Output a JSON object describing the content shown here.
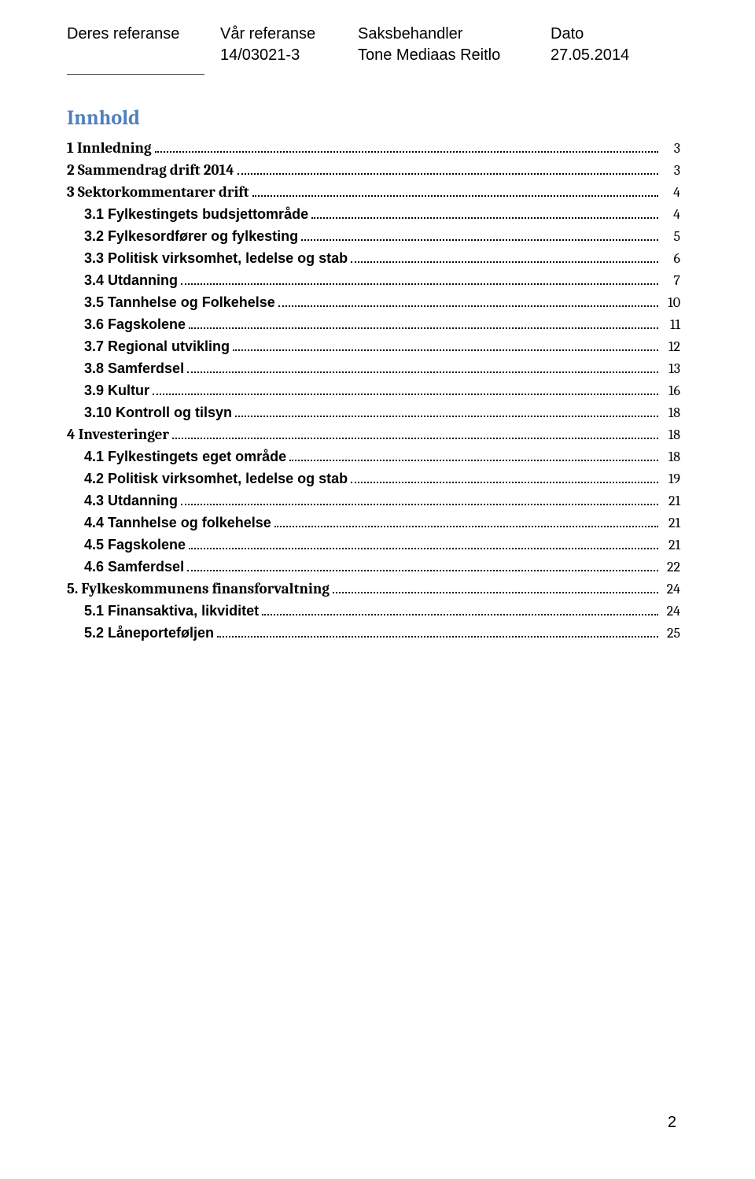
{
  "header": {
    "labels": {
      "col1": "Deres referanse",
      "col2": "Vår referanse",
      "col3": "Saksbehandler",
      "col4": "Dato"
    },
    "values": {
      "col1": "",
      "col2": "14/03021-3",
      "col3": "Tone Mediaas Reitlo",
      "col4": "27.05.2014"
    }
  },
  "title": "Innhold",
  "toc": [
    {
      "level": "bold",
      "label": "1 Innledning",
      "page": "3"
    },
    {
      "level": "bold",
      "label": "2 Sammendrag drift 2014",
      "page": "3"
    },
    {
      "level": "bold",
      "label": "3 Sektorkommentarer drift",
      "page": "4"
    },
    {
      "level": "sub",
      "label": "3.1 Fylkestingets budsjettområde",
      "page": "4"
    },
    {
      "level": "sub",
      "label": "3.2 Fylkesordfører og fylkesting",
      "page": "5"
    },
    {
      "level": "sub",
      "label": "3.3 Politisk virksomhet, ledelse og stab",
      "page": "6"
    },
    {
      "level": "sub",
      "label": "3.4 Utdanning",
      "page": "7"
    },
    {
      "level": "sub",
      "label": "3.5 Tannhelse og Folkehelse",
      "page": "10"
    },
    {
      "level": "sub",
      "label": "3.6 Fagskolene",
      "page": "11"
    },
    {
      "level": "sub",
      "label": "3.7 Regional utvikling",
      "page": "12"
    },
    {
      "level": "sub",
      "label": "3.8 Samferdsel",
      "page": "13"
    },
    {
      "level": "sub",
      "label": "3.9 Kultur",
      "page": "16"
    },
    {
      "level": "sub",
      "label": "3.10 Kontroll og tilsyn",
      "page": "18"
    },
    {
      "level": "bold",
      "label": "4 Investeringer",
      "page": "18"
    },
    {
      "level": "sub",
      "label": "4.1 Fylkestingets eget område",
      "page": "18"
    },
    {
      "level": "sub",
      "label": "4.2 Politisk virksomhet, ledelse og stab",
      "page": "19"
    },
    {
      "level": "sub",
      "label": "4.3 Utdanning",
      "page": "21"
    },
    {
      "level": "sub",
      "label": "4.4 Tannhelse og folkehelse",
      "page": "21"
    },
    {
      "level": "sub",
      "label": "4.5 Fagskolene",
      "page": "21"
    },
    {
      "level": "sub",
      "label": "4.6 Samferdsel",
      "page": "22"
    },
    {
      "level": "bold",
      "label": "5. Fylkeskommunens finansforvaltning",
      "page": "24"
    },
    {
      "level": "sub",
      "label": "5.1 Finansaktiva, likviditet",
      "page": "24"
    },
    {
      "level": "sub",
      "label": "5.2 Låneporteføljen",
      "page": "25"
    }
  ],
  "pageNumber": "2"
}
